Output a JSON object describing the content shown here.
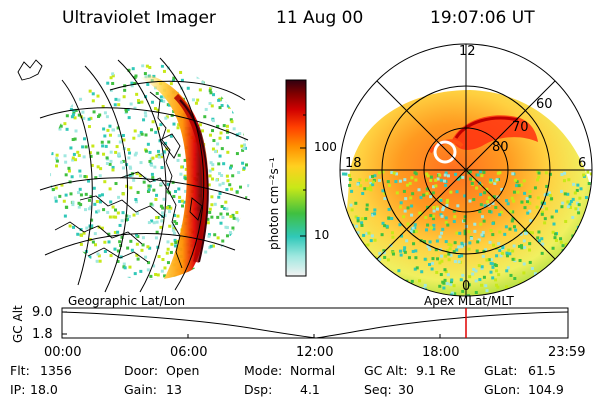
{
  "header": {
    "instrument": "Ultraviolet Imager",
    "date": "11 Aug 00",
    "time": "19:07:06 UT"
  },
  "colorbar": {
    "unit_label": "photon cm⁻²s⁻¹",
    "tick_100": "100",
    "tick_10": "10"
  },
  "polar_plot": {
    "mlt_labels": [
      "12",
      "18",
      "6",
      "0"
    ],
    "mlat_labels": [
      "60",
      "70",
      "80"
    ]
  },
  "panels": {
    "left_caption": "Geographic Lat/Lon",
    "right_caption": "Apex MLat/MLT"
  },
  "altitude_track": {
    "y_axis_label": "GC Alt",
    "y_ticks": [
      "9.0",
      "1.8"
    ],
    "time_ticks": [
      "00:00",
      "06:00",
      "12:00",
      "18:00",
      "23:59"
    ],
    "current_marker_time": "19:07"
  },
  "footer": {
    "row1": [
      {
        "label": "Flt:",
        "value": "1356"
      },
      {
        "label": "Door:",
        "value": "Open"
      },
      {
        "label": "Mode:",
        "value": "Normal"
      },
      {
        "label": "GC Alt:",
        "value": "9.1 Re"
      },
      {
        "label": "GLat:",
        "value": "61.5"
      }
    ],
    "row2": [
      {
        "label": "IP:",
        "value": "18.0"
      },
      {
        "label": "Gain:",
        "value": "13"
      },
      {
        "label": "Dsp:",
        "value": "4.1"
      },
      {
        "label": "Seq:",
        "value": "30"
      },
      {
        "label": "GLon:",
        "value": "104.9"
      }
    ]
  },
  "colors": {
    "marker": "#e00000",
    "scale": [
      "#f2f2f2",
      "#a0e8e0",
      "#30c8b8",
      "#40c040",
      "#c8e818",
      "#ffd020",
      "#ff9000",
      "#ff4000",
      "#d00000",
      "#800000",
      "#300010"
    ]
  }
}
